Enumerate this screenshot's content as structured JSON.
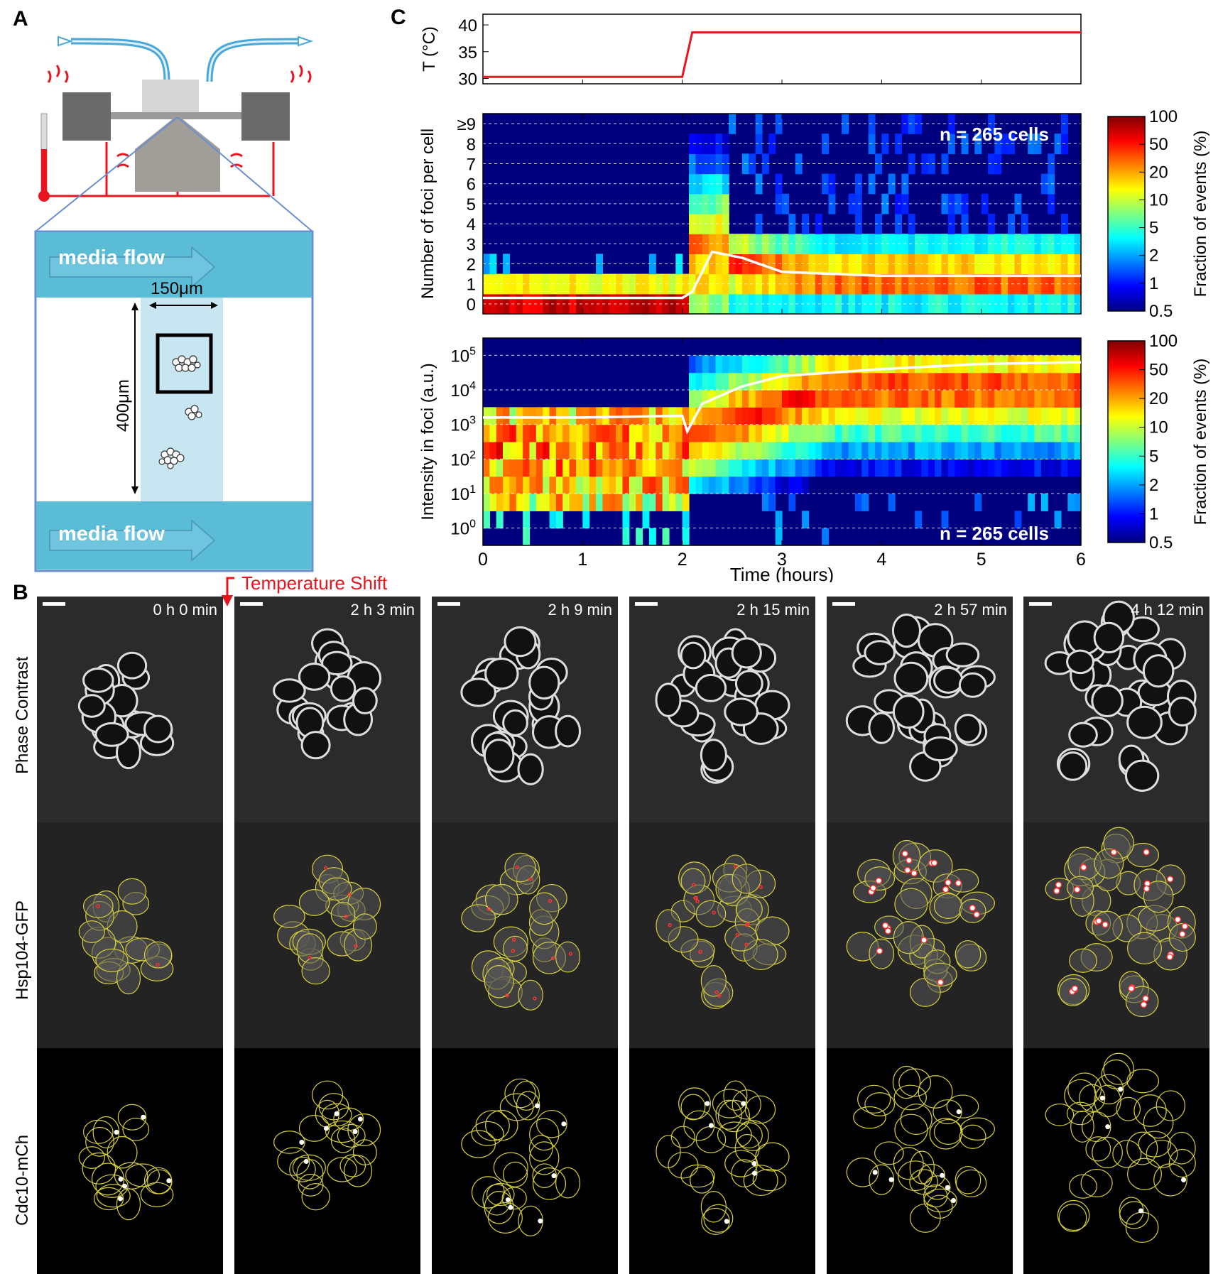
{
  "panels": {
    "a": "A",
    "b": "B",
    "c": "C"
  },
  "panel_a": {
    "flow_label_top": "media flow",
    "flow_label_bottom": "media flow",
    "width_label": "150μm",
    "height_label": "400μm"
  },
  "panel_b": {
    "temperature_shift_label": "Temperature Shift",
    "row_labels": [
      "Phase Contrast",
      "Hsp104-GFP",
      "Cdc10-mCh"
    ],
    "times": [
      "0 h 0 min",
      "2 h 3 min",
      "2 h 9 min",
      "2 h 15 min",
      "2 h 57 min",
      "4 h 12 min"
    ]
  },
  "colors": {
    "temperature_line": "#e8141e",
    "chamber_blue": "#5bbcd6",
    "chamber_light": "#c8e6f2",
    "heatmap_background": "#00007f",
    "outline_yellow": "#d6cf3a",
    "foci_red": "#ff3030"
  },
  "chart_data": [
    {
      "type": "line",
      "ylabel": "T (°C)",
      "ylim": [
        29,
        42
      ],
      "yticks": [
        "30",
        "35",
        "40"
      ],
      "xlim": [
        0,
        6
      ],
      "series": [
        {
          "x": [
            0,
            2,
            2.1,
            6
          ],
          "y": [
            30.3,
            30.3,
            38.6,
            38.6
          ]
        }
      ]
    },
    {
      "type": "heatmap",
      "ylabel": "Number of foci per cell",
      "ytick_labels": [
        "0",
        "1",
        "2",
        "3",
        "4",
        "5",
        "6",
        "7",
        "8",
        "≥9"
      ],
      "xlim": [
        0,
        6
      ],
      "annotation": "n = 265 cells",
      "colorbar_label": "Fraction of events (%)",
      "colorbar_ticks": [
        "100",
        "50",
        "20",
        "10",
        "5",
        "2",
        "1",
        "0.5"
      ],
      "mean_line": {
        "x": [
          0,
          1,
          2,
          2.1,
          2.3,
          2.6,
          3,
          4,
          5,
          6
        ],
        "y": [
          0.3,
          0.3,
          0.3,
          0.6,
          2.6,
          2.3,
          1.6,
          1.4,
          1.4,
          1.4
        ]
      }
    },
    {
      "type": "heatmap",
      "ylabel": "Intensity in foci (a.u.)",
      "ytick_labels": [
        "10^0",
        "10^1",
        "10^2",
        "10^3",
        "10^4",
        "10^5"
      ],
      "xlim": [
        0,
        6
      ],
      "xticks": [
        "0",
        "1",
        "2",
        "3",
        "4",
        "5",
        "6"
      ],
      "xlabel": "Time (hours)",
      "annotation": "n = 265 cells",
      "colorbar_label": "Fraction of events (%)",
      "colorbar_ticks": [
        "100",
        "50",
        "20",
        "10",
        "5",
        "2",
        "1",
        "0.5"
      ],
      "mean_line": {
        "x": [
          0,
          1,
          2,
          2.05,
          2.2,
          2.6,
          3,
          4,
          5,
          6
        ],
        "y": [
          3.2,
          3.2,
          3.25,
          2.8,
          3.6,
          4.1,
          4.4,
          4.6,
          4.75,
          4.8
        ]
      }
    }
  ]
}
